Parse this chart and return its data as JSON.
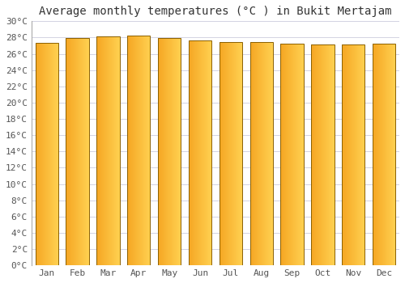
{
  "title": "Average monthly temperatures (°C ) in Bukit Mertajam",
  "months": [
    "Jan",
    "Feb",
    "Mar",
    "Apr",
    "May",
    "Jun",
    "Jul",
    "Aug",
    "Sep",
    "Oct",
    "Nov",
    "Dec"
  ],
  "values": [
    27.3,
    27.9,
    28.1,
    28.2,
    27.9,
    27.6,
    27.4,
    27.4,
    27.2,
    27.1,
    27.1,
    27.2
  ],
  "ylim": [
    0,
    30
  ],
  "yticks": [
    0,
    2,
    4,
    6,
    8,
    10,
    12,
    14,
    16,
    18,
    20,
    22,
    24,
    26,
    28,
    30
  ],
  "bar_color_left": "#F5A623",
  "bar_color_right": "#FFD050",
  "bar_border_color": "#8B6000",
  "background_color": "#ffffff",
  "grid_color": "#ccccdd",
  "title_fontsize": 10,
  "tick_fontsize": 8,
  "title_font": "monospace",
  "tick_font": "monospace",
  "figsize": [
    5.0,
    3.5
  ],
  "dpi": 100
}
